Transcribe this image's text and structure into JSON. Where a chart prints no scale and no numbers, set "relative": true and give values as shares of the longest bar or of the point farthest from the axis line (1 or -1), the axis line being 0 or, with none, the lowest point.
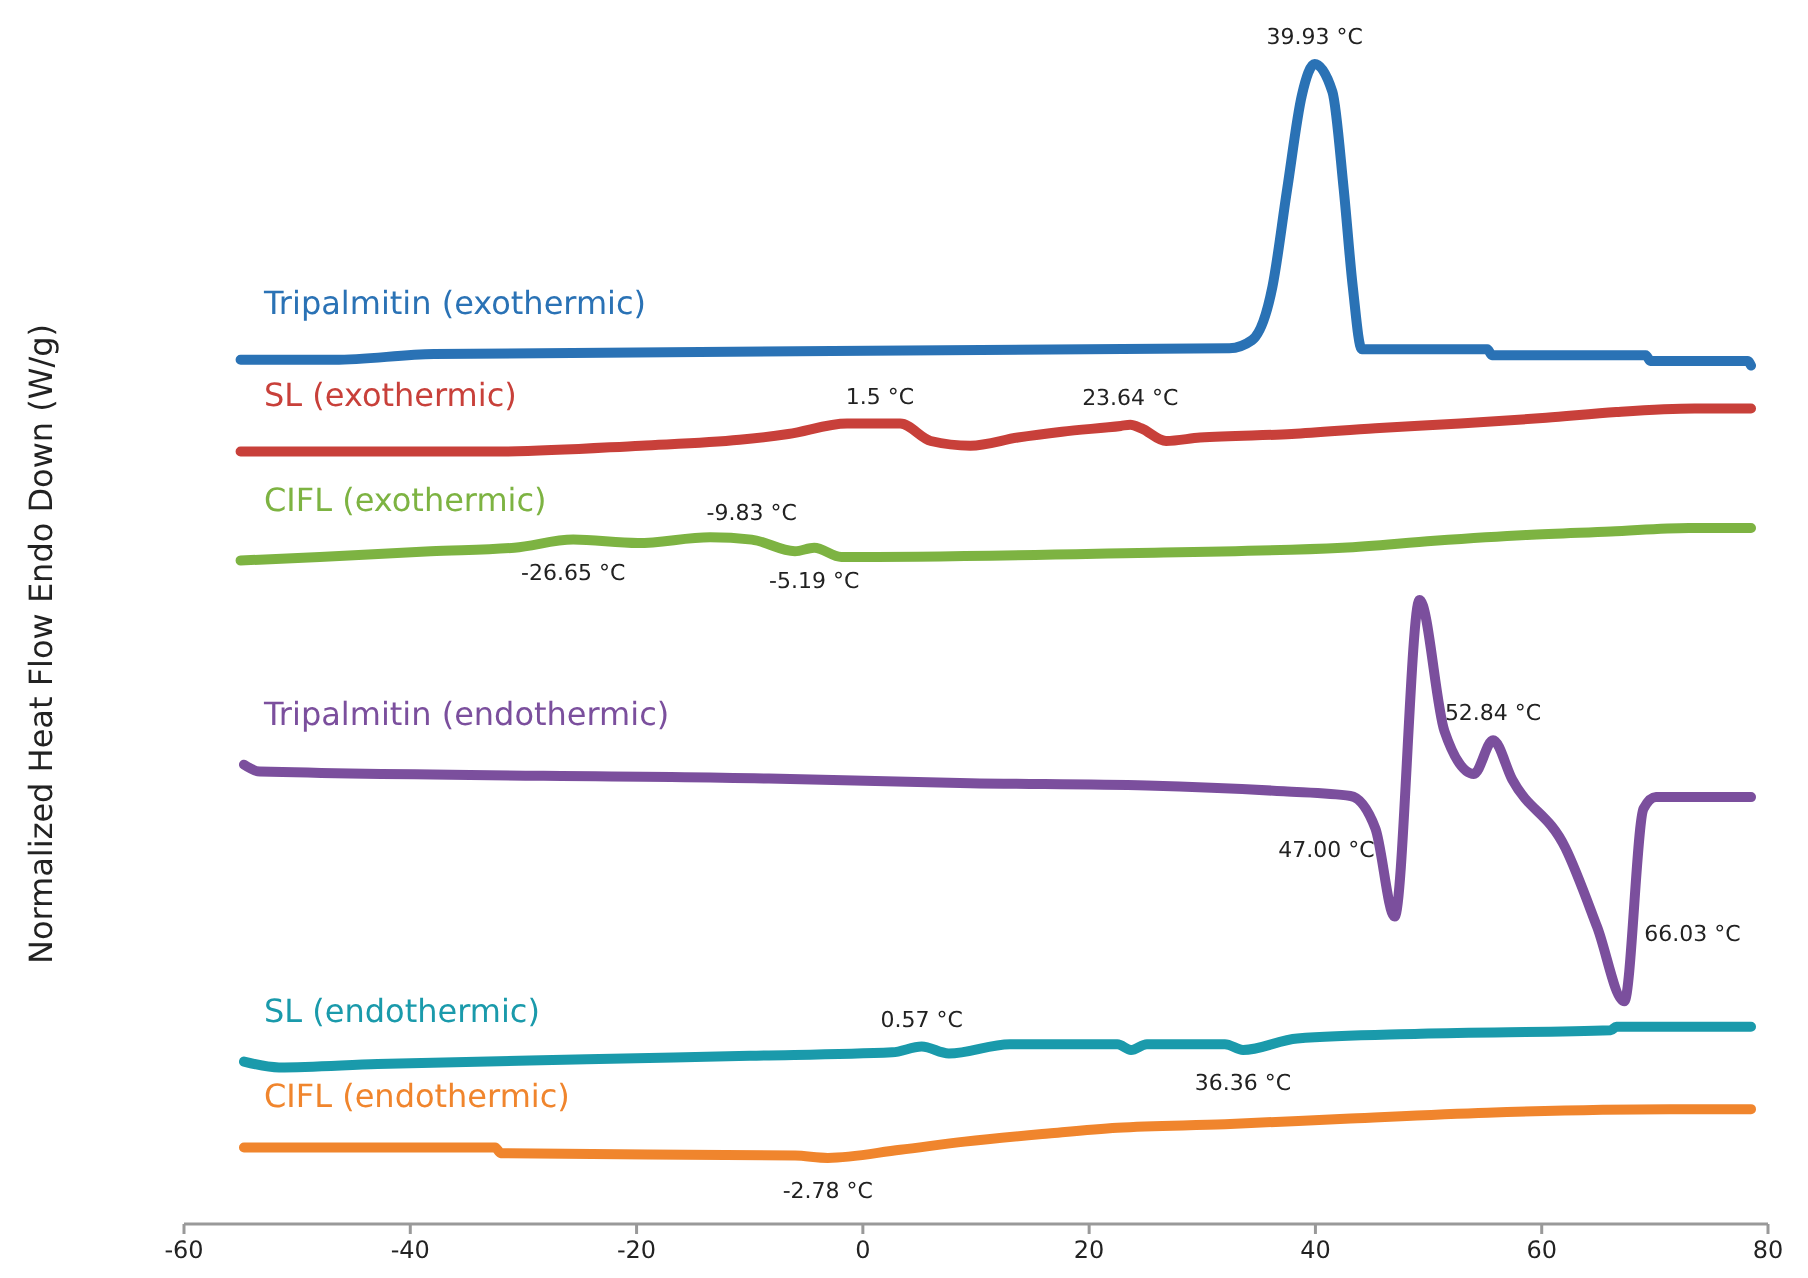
{
  "chart_data": {
    "type": "line",
    "relative": true,
    "ylabel": "Normalized Heat Flow Endo Down  (W/g)",
    "xlim": [
      -60,
      80
    ],
    "xticks": [
      -60,
      -40,
      -20,
      0,
      20,
      40,
      60,
      80
    ],
    "series": [
      {
        "name": "Tripalmitin (exothermic)",
        "color": "#2a72b5",
        "x": [
          -55,
          -46.7,
          -37.9,
          32.4,
          34.4,
          36.2,
          37.5,
          38.8,
          39.93,
          41.5,
          42.5,
          43.3,
          44.1,
          55.2,
          55.6,
          69.2,
          69.6,
          78.2,
          78.5
        ],
        "values": [
          0.745,
          0.745,
          0.75,
          0.755,
          0.762,
          0.808,
          0.892,
          0.973,
          1.0,
          0.976,
          0.892,
          0.808,
          0.754,
          0.754,
          0.749,
          0.749,
          0.744,
          0.744,
          0.74
        ]
      },
      {
        "name": "SL (exothermic)",
        "color": "#c8403a",
        "x": [
          -55,
          -32,
          -19.6,
          -10.9,
          -6.6,
          -1.4,
          3.3,
          6,
          9.5,
          13.7,
          17.6,
          22.8,
          23.64,
          24.6,
          26.8,
          29.8,
          37.9,
          45.3,
          52.8,
          60.4,
          66.6,
          73.5,
          78.5
        ],
        "values": [
          0.666,
          0.666,
          0.671,
          0.676,
          0.681,
          0.69,
          0.69,
          0.675,
          0.671,
          0.678,
          0.683,
          0.688,
          0.689,
          0.686,
          0.675,
          0.678,
          0.681,
          0.686,
          0.69,
          0.695,
          0.7,
          0.703,
          0.703
        ]
      },
      {
        "name": "CIFL (exothermic)",
        "color": "#7db342",
        "x": [
          -55,
          -48,
          -38.2,
          -30.8,
          -25.6,
          -19.9,
          -13.5,
          -9.83,
          -6,
          -4.3,
          -1.9,
          21.6,
          42.4,
          50.5,
          58.7,
          66.1,
          73,
          78.5
        ],
        "values": [
          0.572,
          0.575,
          0.58,
          0.583,
          0.59,
          0.587,
          0.592,
          0.59,
          0.58,
          0.583,
          0.575,
          0.578,
          0.583,
          0.589,
          0.594,
          0.597,
          0.6,
          0.6
        ]
      },
      {
        "name": "Tripalmitin (endothermic)",
        "color": "#7b4f9d",
        "x": [
          -54.7,
          -53.3,
          -8.3,
          9.5,
          25.1,
          37.2,
          43.1,
          45.3,
          47.0,
          49.2,
          51.4,
          54,
          55.7,
          57.4,
          62.1,
          64.9,
          67.3,
          69,
          70.1,
          78.5
        ],
        "values": [
          0.396,
          0.39,
          0.384,
          0.38,
          0.378,
          0.373,
          0.369,
          0.341,
          0.265,
          0.538,
          0.425,
          0.388,
          0.417,
          0.383,
          0.324,
          0.256,
          0.192,
          0.358,
          0.368,
          0.368
        ]
      },
      {
        "name": "SL (endothermic)",
        "color": "#1a9aab",
        "x": [
          -54.7,
          -51.6,
          -42.9,
          -24.4,
          -10,
          2.6,
          5.2,
          7.6,
          13,
          22.5,
          23.7,
          25.1,
          32,
          33.6,
          38.4,
          49.3,
          66.1,
          66.6,
          78.5
        ],
        "values": [
          0.14,
          0.135,
          0.138,
          0.142,
          0.145,
          0.148,
          0.153,
          0.147,
          0.155,
          0.155,
          0.15,
          0.155,
          0.155,
          0.15,
          0.16,
          0.164,
          0.167,
          0.17,
          0.17
        ]
      },
      {
        "name": "CIFL (endothermic)",
        "color": "#f0852d",
        "x": [
          -54.7,
          -32.5,
          -32,
          -6,
          -3.1,
          3.3,
          9,
          16.4,
          22.5,
          32,
          43.1,
          55.2,
          71.3,
          78.5
        ],
        "values": [
          0.066,
          0.066,
          0.061,
          0.059,
          0.057,
          0.064,
          0.071,
          0.078,
          0.083,
          0.086,
          0.091,
          0.096,
          0.099,
          0.099
        ]
      }
    ],
    "annotations": [
      {
        "text": "39.93 °C",
        "x": 39.93,
        "y": 1.0
      },
      {
        "text": "1.5 °C",
        "x": 1.5,
        "y": 0.69
      },
      {
        "text": "23.64 °C",
        "x": 23.64,
        "y": 0.689
      },
      {
        "text": "-5.19 °C",
        "x": -4.3,
        "y": 0.583
      },
      {
        "text": "-26.65 °C",
        "x": -25.6,
        "y": 0.59
      },
      {
        "text": "-9.83 °C",
        "x": -9.83,
        "y": 0.59
      },
      {
        "text": "52.84 °C",
        "x": 55.7,
        "y": 0.417
      },
      {
        "text": "47.00 °C",
        "x": 47.0,
        "y": 0.265
      },
      {
        "text": "66.03 °C",
        "x": 67.3,
        "y": 0.192
      },
      {
        "text": "0.57 °C",
        "x": 5.2,
        "y": 0.153
      },
      {
        "text": "36.36 °C",
        "x": 33.6,
        "y": 0.15
      },
      {
        "text": "-2.78 °C",
        "x": -3.1,
        "y": 0.057
      }
    ]
  }
}
